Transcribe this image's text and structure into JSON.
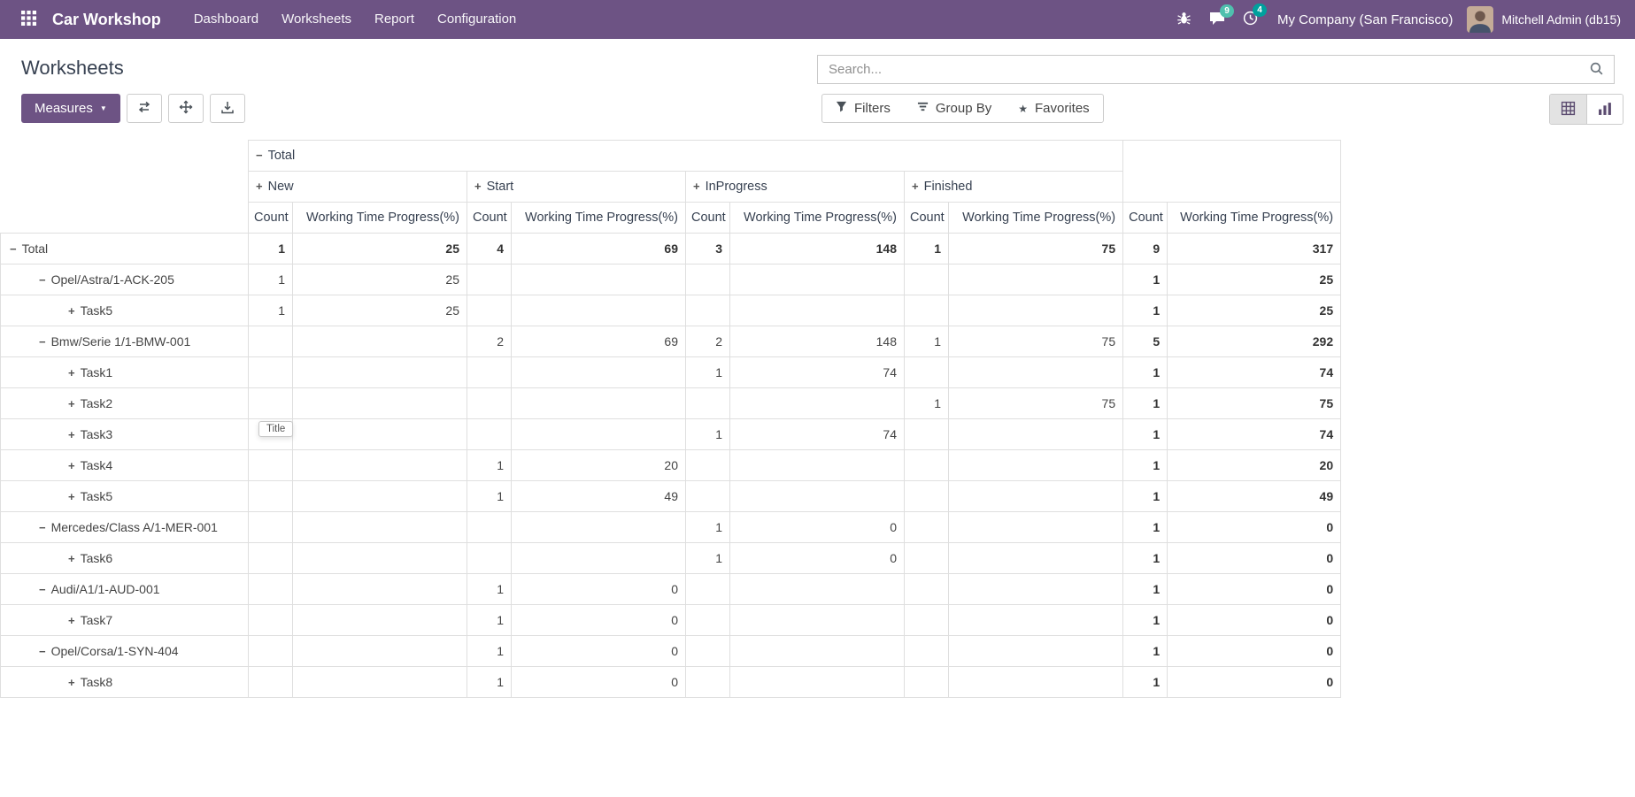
{
  "colors": {
    "navbar_bg": "#6d5384",
    "primary_button_bg": "#6d5384",
    "messages_badge_bg": "#4fc0ae",
    "activities_badge_bg": "#00a09d",
    "table_border": "#dfdfdf"
  },
  "icons": {
    "caret_down": "▼",
    "star": "★",
    "expanded_sign": "−",
    "collapsed_sign": "+"
  },
  "navbar": {
    "app_name": "Car Workshop",
    "menu": [
      "Dashboard",
      "Worksheets",
      "Report",
      "Configuration"
    ],
    "messages_badge": "9",
    "activities_badge": "4",
    "company": "My Company (San Francisco)",
    "user": "Mitchell Admin (db15)"
  },
  "page": {
    "title": "Worksheets",
    "search_placeholder": "Search...",
    "measures_label": "Measures",
    "filters_label": "Filters",
    "group_by_label": "Group By",
    "favorites_label": "Favorites"
  },
  "pivot": {
    "row_axis_tooltip": "Title",
    "top_header": "Total",
    "column_groups": [
      "New",
      "Start",
      "InProgress",
      "Finished"
    ],
    "measures": [
      "Count",
      "Working Time Progress(%)"
    ],
    "rows": [
      {
        "label": "Total",
        "level": 0,
        "sign": "expanded",
        "total_row": true,
        "cells": [
          "1",
          "25",
          "4",
          "69",
          "3",
          "148",
          "1",
          "75",
          "9",
          "317"
        ]
      },
      {
        "label": "Opel/Astra/1-ACK-205",
        "level": 1,
        "sign": "expanded",
        "cells": [
          "1",
          "25",
          "",
          "",
          "",
          "",
          "",
          "",
          "1",
          "25"
        ]
      },
      {
        "label": "Task5",
        "level": 2,
        "sign": "collapsed",
        "cells": [
          "1",
          "25",
          "",
          "",
          "",
          "",
          "",
          "",
          "1",
          "25"
        ]
      },
      {
        "label": "Bmw/Serie 1/1-BMW-001",
        "level": 1,
        "sign": "expanded",
        "cells": [
          "",
          "",
          "2",
          "69",
          "2",
          "148",
          "1",
          "75",
          "5",
          "292"
        ]
      },
      {
        "label": "Task1",
        "level": 2,
        "sign": "collapsed",
        "cells": [
          "",
          "",
          "",
          "",
          "1",
          "74",
          "",
          "",
          "1",
          "74"
        ]
      },
      {
        "label": "Task2",
        "level": 2,
        "sign": "collapsed",
        "cells": [
          "",
          "",
          "",
          "",
          "",
          "",
          "1",
          "75",
          "1",
          "75"
        ]
      },
      {
        "label": "Task3",
        "level": 2,
        "sign": "collapsed",
        "cells": [
          "",
          "",
          "",
          "",
          "1",
          "74",
          "",
          "",
          "1",
          "74"
        ]
      },
      {
        "label": "Task4",
        "level": 2,
        "sign": "collapsed",
        "cells": [
          "",
          "",
          "1",
          "20",
          "",
          "",
          "",
          "",
          "1",
          "20"
        ]
      },
      {
        "label": "Task5",
        "level": 2,
        "sign": "collapsed",
        "cells": [
          "",
          "",
          "1",
          "49",
          "",
          "",
          "",
          "",
          "1",
          "49"
        ]
      },
      {
        "label": "Mercedes/Class A/1-MER-001",
        "level": 1,
        "sign": "expanded",
        "cells": [
          "",
          "",
          "",
          "",
          "1",
          "0",
          "",
          "",
          "1",
          "0"
        ]
      },
      {
        "label": "Task6",
        "level": 2,
        "sign": "collapsed",
        "cells": [
          "",
          "",
          "",
          "",
          "1",
          "0",
          "",
          "",
          "1",
          "0"
        ]
      },
      {
        "label": "Audi/A1/1-AUD-001",
        "level": 1,
        "sign": "expanded",
        "cells": [
          "",
          "",
          "1",
          "0",
          "",
          "",
          "",
          "",
          "1",
          "0"
        ]
      },
      {
        "label": "Task7",
        "level": 2,
        "sign": "collapsed",
        "cells": [
          "",
          "",
          "1",
          "0",
          "",
          "",
          "",
          "",
          "1",
          "0"
        ]
      },
      {
        "label": "Opel/Corsa/1-SYN-404",
        "level": 1,
        "sign": "expanded",
        "cells": [
          "",
          "",
          "1",
          "0",
          "",
          "",
          "",
          "",
          "1",
          "0"
        ]
      },
      {
        "label": "Task8",
        "level": 2,
        "sign": "collapsed",
        "cells": [
          "",
          "",
          "1",
          "0",
          "",
          "",
          "",
          "",
          "1",
          "0"
        ]
      }
    ]
  }
}
